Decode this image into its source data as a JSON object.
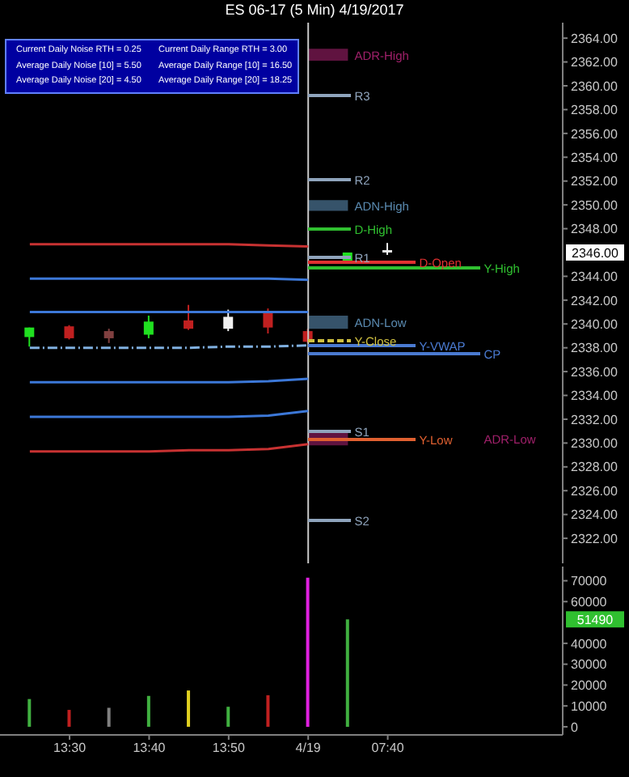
{
  "chart_data": [
    {
      "type": "candlestick",
      "title": "ES 06-17 (5 Min) 4/19/2017",
      "annotations": [
        "Current Daily Noise RTH = 0.25",
        "Average Daily Noise [10] = 5.50",
        "Average Daily Noise [20] = 4.50",
        "Current Daily Range RTH = 3.00",
        "Average Daily Range [10] = 16.50",
        "Average Daily Range [20] = 18.25"
      ],
      "value_labels": [
        null,
        null,
        null,
        null,
        null,
        null,
        null,
        null,
        null,
        "2346.00",
        null,
        null,
        null,
        null
      ],
      "categories": [
        null,
        "13:30",
        null,
        "13:40",
        null,
        "13:50",
        null,
        "4/19",
        null,
        "07:40",
        null,
        null,
        null,
        null
      ],
      "ohlc": [
        [
          2338.9,
          2339.7,
          2338.1,
          2339.7
        ],
        [
          2339.8,
          2339.9,
          2338.7,
          2338.8
        ],
        [
          2339.4,
          2339.6,
          2338.4,
          2338.8
        ],
        [
          2339.1,
          2340.7,
          2338.8,
          2340.2
        ],
        [
          2340.3,
          2341.6,
          2339.5,
          2339.6
        ],
        [
          2339.6,
          2341.2,
          2339.4,
          2340.6
        ],
        [
          2341.0,
          2341.3,
          2339.2,
          2339.7
        ],
        [
          2339.4,
          2339.6,
          2338.4,
          2338.5
        ],
        [
          2345.2,
          2346.0,
          2345.2,
          2346.0
        ],
        [
          2346.2,
          2346.8,
          2345.8,
          2346.0
        ],
        null,
        null,
        null,
        null
      ],
      "colors": [
        "#20e020",
        "#c02020",
        "#804040",
        "#20e020",
        "#c02020",
        "#f0f0f0",
        "#c02020",
        "#c02020",
        "#20e020",
        "#f0f0f0",
        null,
        null,
        null,
        null
      ],
      "series": [
        {
          "type": "line",
          "color": "#c83232",
          "values": [
            2346.7,
            2346.7,
            2346.7,
            2346.7,
            2346.7,
            2346.7,
            2346.6,
            2346.5,
            null,
            null,
            null,
            null,
            null,
            null
          ]
        },
        {
          "type": "line",
          "color": "#3c78d8",
          "values": [
            2343.8,
            2343.8,
            2343.8,
            2343.8,
            2343.8,
            2343.8,
            2343.8,
            2343.7,
            null,
            null,
            null,
            null,
            null,
            null
          ]
        },
        {
          "type": "line",
          "color": "#3c78d8",
          "values": [
            2341.0,
            2341.0,
            2341.0,
            2341.0,
            2341.0,
            2341.0,
            2341.0,
            2341.0,
            null,
            null,
            null,
            null,
            null,
            null
          ]
        },
        {
          "type": "line",
          "color": "#80b0e0",
          "line_style": "dashed",
          "values": [
            2338.0,
            2338.0,
            2338.0,
            2338.0,
            2338.0,
            2338.1,
            2338.1,
            2338.2,
            null,
            null,
            null,
            null,
            null,
            null
          ]
        },
        {
          "type": "line",
          "color": "#3c78d8",
          "values": [
            2335.1,
            2335.1,
            2335.1,
            2335.1,
            2335.1,
            2335.1,
            2335.2,
            2335.4,
            null,
            null,
            null,
            null,
            null,
            null
          ]
        },
        {
          "type": "line",
          "color": "#3c78d8",
          "values": [
            2332.2,
            2332.2,
            2332.2,
            2332.2,
            2332.2,
            2332.2,
            2332.3,
            2332.7,
            null,
            null,
            null,
            null,
            null,
            null
          ]
        },
        {
          "type": "line",
          "color": "#c83232",
          "values": [
            2329.3,
            2329.3,
            2329.3,
            2329.3,
            2329.4,
            2329.4,
            2329.5,
            2329.9,
            null,
            null,
            null,
            null,
            null,
            null
          ]
        }
      ],
      "ylim": [
        2319.9,
        2365.3
      ],
      "yticks": [
        {
          "value": 2322,
          "label": "2322.00"
        },
        {
          "value": 2324,
          "label": "2324.00"
        },
        {
          "value": 2326,
          "label": "2326.00"
        },
        {
          "value": 2328,
          "label": "2328.00"
        },
        {
          "value": 2330,
          "label": "2330.00"
        },
        {
          "value": 2332,
          "label": "2332.00"
        },
        {
          "value": 2334,
          "label": "2334.00"
        },
        {
          "value": 2336,
          "label": "2336.00"
        },
        {
          "value": 2338,
          "label": "2338.00"
        },
        {
          "value": 2340,
          "label": "2340.00"
        },
        {
          "value": 2342,
          "label": "2342.00"
        },
        {
          "value": 2344,
          "label": "2344.00"
        },
        {
          "value": 2348,
          "label": "2348.00"
        },
        {
          "value": 2350,
          "label": "2350.00"
        },
        {
          "value": 2352,
          "label": "2352.00"
        },
        {
          "value": 2354,
          "label": "2354.00"
        },
        {
          "value": 2356,
          "label": "2356.00"
        },
        {
          "value": 2358,
          "label": "2358.00"
        },
        {
          "value": 2360,
          "label": "2360.00"
        },
        {
          "value": 2362,
          "label": "2362.00"
        },
        {
          "value": 2364,
          "label": "2364.00"
        }
      ],
      "ref_lines": [
        {
          "axis": "x",
          "value": "4/19",
          "color": "#c8c8c8"
        },
        {
          "axis": "y",
          "value": 2359.2,
          "label": "R3",
          "color": "#8fa4bc"
        },
        {
          "axis": "y",
          "value": 2352.1,
          "label": "R2",
          "color": "#8fa4bc"
        },
        {
          "axis": "y",
          "value": 2348,
          "label": "D-High",
          "color": "#30c030"
        },
        {
          "axis": "y",
          "value": 2345.6,
          "label": "R1",
          "color": "#8fa4bc"
        },
        {
          "axis": "y",
          "value": 2345.2,
          "label": "D-Open",
          "color": "#e03030"
        },
        {
          "axis": "y",
          "value": 2344.7,
          "label": "Y-High",
          "color": "#30c030"
        },
        {
          "axis": "y",
          "value": 2338.6,
          "label": "Y-Close",
          "color": "#d0c040",
          "line_style": "dashed"
        },
        {
          "axis": "y",
          "value": 2338.2,
          "label": "Y-VWAP",
          "color": "#4a7ad0"
        },
        {
          "axis": "y",
          "value": 2337.5,
          "label": "CP",
          "color": "#4a7ad0"
        },
        {
          "axis": "y",
          "value": 2331.0,
          "label": "S1",
          "color": "#8fa4bc"
        },
        {
          "axis": "y",
          "value": 2330.3,
          "label": "Y-Low",
          "color": "#e06030"
        },
        {
          "axis": "y",
          "value": 2323.5,
          "label": "S2",
          "color": "#8fa4bc"
        }
      ],
      "bands": [
        {
          "axis": "y",
          "from": 2362.1,
          "to": 2363.1,
          "label": "ADR-High",
          "color": "#a0206a"
        },
        {
          "axis": "y",
          "from": 2349.5,
          "to": 2350.4,
          "label": "ADN-High",
          "color": "#5a8ab0"
        },
        {
          "axis": "y",
          "from": 2339.6,
          "to": 2340.7,
          "label": "ADN-Low",
          "color": "#5a8ab0"
        },
        {
          "axis": "y",
          "from": 2329.8,
          "to": 2330.9,
          "label": "ADR-Low",
          "color": "#a0206a"
        }
      ],
      "tick_labels": "y",
      "grid": false,
      "legend": false
    },
    {
      "type": "bar",
      "categories": [
        null,
        "13:30",
        null,
        "13:40",
        null,
        "13:50",
        null,
        "4/19",
        null,
        "07:40",
        null,
        null,
        null,
        null
      ],
      "values": [
        13300,
        8100,
        9100,
        14800,
        17400,
        9600,
        15100,
        71500,
        51490,
        null,
        null,
        null,
        null,
        null
      ],
      "colors": [
        "#40b040",
        "#c02020",
        "#808080",
        "#40b040",
        "#e0d020",
        "#40b040",
        "#c02020",
        "#e020e0",
        "#40b040",
        null,
        null,
        null,
        null,
        null
      ],
      "annotations": [
        "51490"
      ],
      "ylim": [
        -3900,
        76800
      ],
      "yticks": [
        0,
        10000,
        20000,
        30000,
        40000,
        60000,
        70000
      ],
      "grid": false,
      "legend": false
    }
  ]
}
